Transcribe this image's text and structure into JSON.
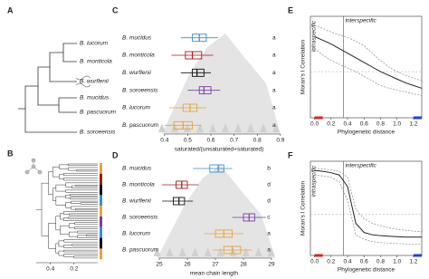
{
  "trees": [
    {
      "label": "A",
      "tips": [
        {
          "name": "B. lucorum",
          "color": "#e8a33d"
        },
        {
          "name": "B. monticola",
          "color": "#a31a1a"
        },
        {
          "name": "B. wurflenii",
          "color": "#111111"
        },
        {
          "name": "B. mucidus",
          "color": "#3a8fc9"
        },
        {
          "name": "B. pascuorum",
          "color": "#e8a33d"
        },
        {
          "name": "B. soroeensis",
          "color": "#7b3fa0"
        }
      ]
    },
    {
      "label": "B",
      "xlim": [
        0.52,
        0
      ],
      "xticks": [
        0.4,
        0.2
      ]
    }
  ],
  "chart_data": [
    {
      "label": "C",
      "type": "box",
      "xlabel": "saturated/(unsaturated+saturated)",
      "categories": [
        "B. mucidus",
        "B. monticola",
        "B. wurflenii",
        "B. soroeensis",
        "B. lucorum",
        "B. pascuorum"
      ],
      "colors": [
        "#3a8fc9",
        "#a31a1a",
        "#111111",
        "#7b3fa0",
        "#e8a33d",
        "#e8a33d"
      ],
      "letters": [
        "a",
        "a",
        "a",
        "a",
        "a",
        "a"
      ],
      "boxes": [
        {
          "min": 0.47,
          "q1": 0.52,
          "median": 0.55,
          "q3": 0.58,
          "max": 0.63
        },
        {
          "min": 0.43,
          "q1": 0.49,
          "median": 0.52,
          "q3": 0.56,
          "max": 0.61
        },
        {
          "min": 0.47,
          "q1": 0.52,
          "median": 0.54,
          "q3": 0.57,
          "max": 0.6
        },
        {
          "min": 0.5,
          "q1": 0.55,
          "median": 0.57,
          "q3": 0.6,
          "max": 0.64
        },
        {
          "min": 0.42,
          "q1": 0.48,
          "median": 0.51,
          "q3": 0.54,
          "max": 0.58
        },
        {
          "min": 0.4,
          "q1": 0.44,
          "median": 0.48,
          "q3": 0.52,
          "max": 0.56
        }
      ],
      "xlim": [
        0.35,
        0.92
      ],
      "xticks": [
        0.4,
        0.5,
        0.6,
        0.7,
        0.8,
        0.9
      ]
    },
    {
      "label": "D",
      "type": "box",
      "xlabel": "mean chain length",
      "categories": [
        "B. mucidus",
        "B. monticola",
        "B. wurflenii",
        "B. soroeensis",
        "B. lucorum",
        "B. pascuorum"
      ],
      "colors": [
        "#3a8fc9",
        "#a31a1a",
        "#111111",
        "#7b3fa0",
        "#e8a33d",
        "#e8a33d"
      ],
      "letters": [
        "b",
        "d",
        "d",
        "c",
        "a",
        "a"
      ],
      "boxes": [
        {
          "min": 26.2,
          "q1": 26.8,
          "median": 27.1,
          "q3": 27.3,
          "max": 27.6
        },
        {
          "min": 25.1,
          "q1": 25.6,
          "median": 25.8,
          "q3": 26.0,
          "max": 26.4
        },
        {
          "min": 25.1,
          "q1": 25.5,
          "median": 25.7,
          "q3": 25.9,
          "max": 26.2
        },
        {
          "min": 27.6,
          "q1": 28.0,
          "median": 28.2,
          "q3": 28.4,
          "max": 28.8
        },
        {
          "min": 26.6,
          "q1": 27.0,
          "median": 27.3,
          "q3": 27.6,
          "max": 28.0
        },
        {
          "min": 26.9,
          "q1": 27.3,
          "median": 27.6,
          "q3": 27.9,
          "max": 28.3
        }
      ],
      "xlim": [
        24.6,
        29.3
      ],
      "xticks": [
        25,
        26,
        27,
        28,
        29
      ]
    },
    {
      "label": "E",
      "type": "line",
      "xlabel": "Phylogenetic distance",
      "ylabel": "Moran's I Correlation",
      "annotations": [
        "intraspecific",
        "interspecific"
      ],
      "threshold": 0.35,
      "x": [
        0,
        0.1,
        0.2,
        0.3,
        0.4,
        0.5,
        0.6,
        0.7,
        0.8,
        0.9,
        1.0,
        1.1,
        1.2,
        1.3
      ],
      "series": [
        {
          "color": "#222222",
          "values": [
            0.38,
            0.34,
            0.3,
            0.25,
            0.2,
            0.15,
            0.1,
            0.05,
            0.0,
            -0.04,
            -0.08,
            -0.12,
            -0.15,
            -0.18
          ]
        },
        {
          "color": "#888888",
          "dash": true,
          "values": [
            0.5,
            0.47,
            0.43,
            0.4,
            0.37,
            0.33,
            0.28,
            0.2,
            0.12,
            0.05,
            0.0,
            -0.04,
            -0.07,
            -0.1
          ]
        },
        {
          "color": "#888888",
          "dash": true,
          "values": [
            0.25,
            0.18,
            0.12,
            0.08,
            0.04,
            0.0,
            -0.05,
            -0.1,
            -0.15,
            -0.18,
            -0.2,
            -0.22,
            -0.24,
            -0.26
          ]
        }
      ],
      "xlim": [
        -0.05,
        1.3
      ],
      "ylim": [
        -0.5,
        0.6
      ],
      "xticks": [
        {
          "value": 0,
          "label": "0.0"
        },
        0.2,
        0.4,
        0.6,
        0.8,
        {
          "value": 1,
          "label": "1.0"
        },
        1.2
      ]
    },
    {
      "label": "F",
      "type": "line",
      "xlabel": "Phylogenetic distance",
      "ylabel": "Moran's I Correlation",
      "annotations": [
        "intraspecific",
        "interspecific"
      ],
      "threshold": 0.35,
      "x": [
        0,
        0.1,
        0.2,
        0.3,
        0.4,
        0.5,
        0.6,
        0.7,
        0.8,
        0.9,
        1.0,
        1.1,
        1.2,
        1.3
      ],
      "series": [
        {
          "color": "#222222",
          "values": [
            0.95,
            0.93,
            0.9,
            0.85,
            0.6,
            -0.2,
            -0.4,
            -0.45,
            -0.47,
            -0.48,
            -0.49,
            -0.5,
            -0.5,
            -0.5
          ]
        },
        {
          "color": "#888888",
          "dash": true,
          "values": [
            1.0,
            0.98,
            0.96,
            0.93,
            0.8,
            0.1,
            -0.1,
            -0.2,
            -0.25,
            -0.3,
            -0.33,
            -0.35,
            -0.37,
            -0.38
          ]
        },
        {
          "color": "#888888",
          "dash": true,
          "values": [
            0.85,
            0.83,
            0.8,
            0.7,
            0.3,
            -0.45,
            -0.55,
            -0.6,
            -0.62,
            -0.63,
            -0.64,
            -0.65,
            -0.65,
            -0.65
          ]
        }
      ],
      "xlim": [
        -0.05,
        1.3
      ],
      "ylim": [
        -0.9,
        1.15
      ],
      "xticks": [
        {
          "value": 0,
          "label": "0.0"
        },
        0.2,
        0.4,
        0.6,
        0.8,
        {
          "value": 1,
          "label": "1.0"
        },
        1.2
      ]
    }
  ]
}
